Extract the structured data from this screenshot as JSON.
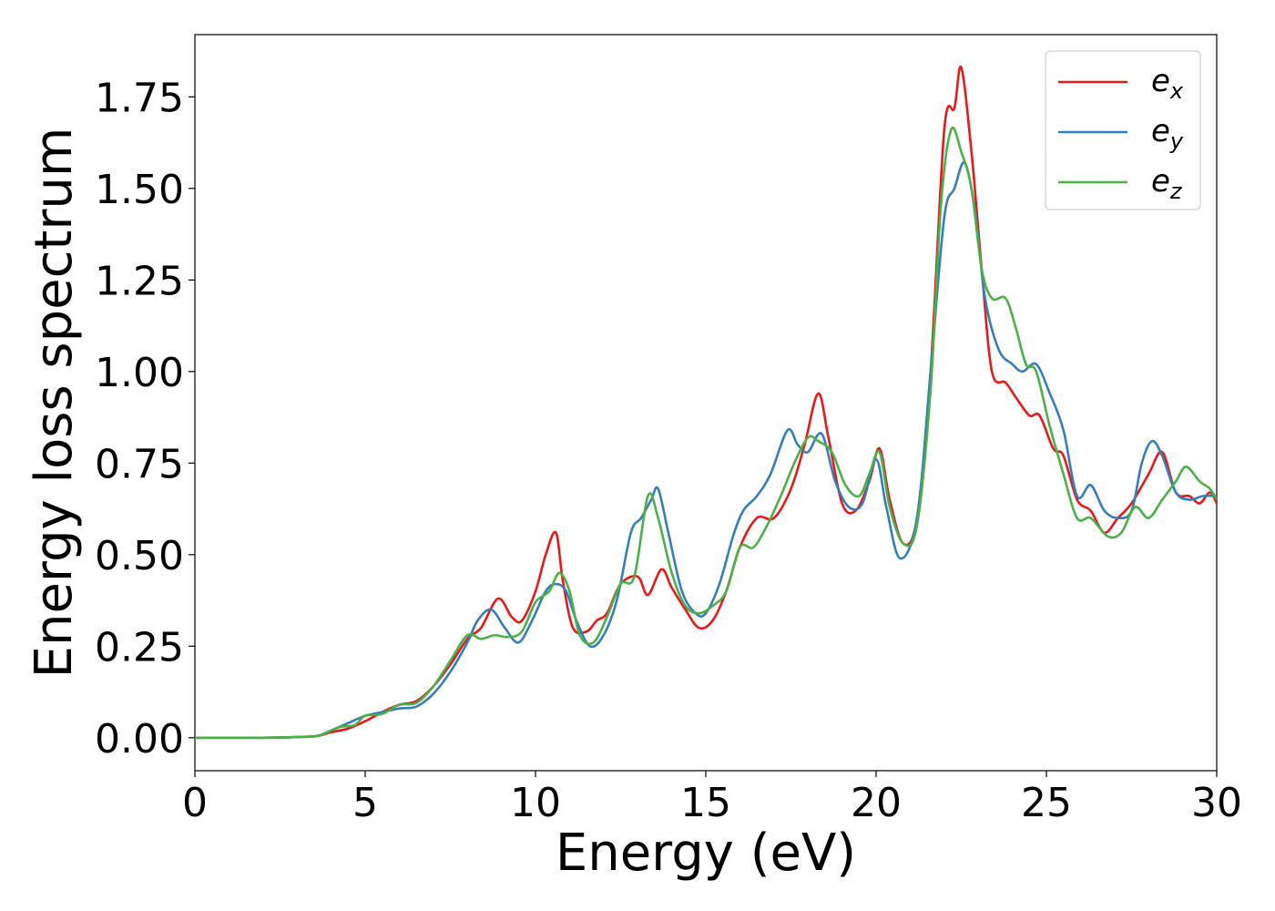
{
  "chart_data": {
    "type": "line",
    "title": "",
    "xlabel": "Energy (eV)",
    "ylabel": "Energy loss spectrum",
    "xlim": [
      0,
      30
    ],
    "ylim": [
      -0.09,
      1.92
    ],
    "xticks": [
      0,
      5,
      10,
      15,
      20,
      25,
      30
    ],
    "yticks": [
      0.0,
      0.25,
      0.5,
      0.75,
      1.0,
      1.25,
      1.5,
      1.75
    ],
    "grid": false,
    "legend_position": "top-right",
    "series": [
      {
        "name": "e_x",
        "legend_main": "e",
        "legend_sub": "x",
        "color": "#e41a1c",
        "points": [
          [
            0,
            0
          ],
          [
            1,
            0
          ],
          [
            2,
            0
          ],
          [
            3,
            0.002
          ],
          [
            3.6,
            0.005
          ],
          [
            4,
            0.015
          ],
          [
            4.5,
            0.025
          ],
          [
            5,
            0.045
          ],
          [
            5.5,
            0.07
          ],
          [
            6,
            0.09
          ],
          [
            6.5,
            0.1
          ],
          [
            7,
            0.14
          ],
          [
            7.5,
            0.2
          ],
          [
            8,
            0.27
          ],
          [
            8.4,
            0.3
          ],
          [
            8.9,
            0.38
          ],
          [
            9.3,
            0.33
          ],
          [
            9.6,
            0.32
          ],
          [
            10,
            0.4
          ],
          [
            10.3,
            0.5
          ],
          [
            10.6,
            0.56
          ],
          [
            10.8,
            0.43
          ],
          [
            11.1,
            0.3
          ],
          [
            11.5,
            0.29
          ],
          [
            11.8,
            0.32
          ],
          [
            12.1,
            0.34
          ],
          [
            12.5,
            0.42
          ],
          [
            13,
            0.44
          ],
          [
            13.3,
            0.39
          ],
          [
            13.7,
            0.46
          ],
          [
            14,
            0.41
          ],
          [
            14.4,
            0.35
          ],
          [
            14.8,
            0.3
          ],
          [
            15.2,
            0.32
          ],
          [
            15.6,
            0.4
          ],
          [
            16,
            0.52
          ],
          [
            16.5,
            0.6
          ],
          [
            17,
            0.6
          ],
          [
            17.5,
            0.68
          ],
          [
            17.9,
            0.8
          ],
          [
            18.3,
            0.94
          ],
          [
            18.6,
            0.82
          ],
          [
            19,
            0.64
          ],
          [
            19.4,
            0.62
          ],
          [
            19.8,
            0.7
          ],
          [
            20.1,
            0.79
          ],
          [
            20.4,
            0.65
          ],
          [
            20.8,
            0.53
          ],
          [
            21.2,
            0.6
          ],
          [
            21.6,
            1.0
          ],
          [
            22,
            1.66
          ],
          [
            22.3,
            1.72
          ],
          [
            22.5,
            1.83
          ],
          [
            22.8,
            1.6
          ],
          [
            23.1,
            1.28
          ],
          [
            23.4,
            1.0
          ],
          [
            23.8,
            0.97
          ],
          [
            24.1,
            0.93
          ],
          [
            24.5,
            0.88
          ],
          [
            24.8,
            0.88
          ],
          [
            25.2,
            0.79
          ],
          [
            25.5,
            0.77
          ],
          [
            25.9,
            0.65
          ],
          [
            26.3,
            0.62
          ],
          [
            26.7,
            0.56
          ],
          [
            27.1,
            0.6
          ],
          [
            27.5,
            0.64
          ],
          [
            28,
            0.72
          ],
          [
            28.4,
            0.78
          ],
          [
            28.8,
            0.67
          ],
          [
            29.2,
            0.66
          ],
          [
            29.5,
            0.64
          ],
          [
            29.8,
            0.67
          ],
          [
            30,
            0.64
          ]
        ]
      },
      {
        "name": "e_y",
        "legend_main": "e",
        "legend_sub": "y",
        "color": "#377eb8",
        "points": [
          [
            0,
            0
          ],
          [
            1,
            0
          ],
          [
            2,
            0
          ],
          [
            3,
            0.002
          ],
          [
            3.6,
            0.005
          ],
          [
            4,
            0.02
          ],
          [
            4.5,
            0.04
          ],
          [
            5,
            0.06
          ],
          [
            5.5,
            0.07
          ],
          [
            6,
            0.08
          ],
          [
            6.5,
            0.085
          ],
          [
            7,
            0.12
          ],
          [
            7.5,
            0.18
          ],
          [
            8,
            0.26
          ],
          [
            8.3,
            0.32
          ],
          [
            8.7,
            0.35
          ],
          [
            9.1,
            0.3
          ],
          [
            9.5,
            0.26
          ],
          [
            9.9,
            0.32
          ],
          [
            10.3,
            0.4
          ],
          [
            10.6,
            0.42
          ],
          [
            10.9,
            0.4
          ],
          [
            11.2,
            0.32
          ],
          [
            11.6,
            0.25
          ],
          [
            12,
            0.28
          ],
          [
            12.4,
            0.38
          ],
          [
            12.8,
            0.56
          ],
          [
            13.1,
            0.6
          ],
          [
            13.4,
            0.65
          ],
          [
            13.6,
            0.68
          ],
          [
            13.9,
            0.56
          ],
          [
            14.3,
            0.4
          ],
          [
            14.7,
            0.34
          ],
          [
            15,
            0.34
          ],
          [
            15.4,
            0.42
          ],
          [
            15.8,
            0.55
          ],
          [
            16.1,
            0.62
          ],
          [
            16.5,
            0.66
          ],
          [
            16.9,
            0.72
          ],
          [
            17.4,
            0.84
          ],
          [
            17.7,
            0.8
          ],
          [
            18,
            0.78
          ],
          [
            18.4,
            0.83
          ],
          [
            18.8,
            0.7
          ],
          [
            19.2,
            0.63
          ],
          [
            19.6,
            0.64
          ],
          [
            20,
            0.76
          ],
          [
            20.3,
            0.63
          ],
          [
            20.7,
            0.49
          ],
          [
            21.2,
            0.6
          ],
          [
            21.6,
            1.0
          ],
          [
            22,
            1.42
          ],
          [
            22.3,
            1.5
          ],
          [
            22.6,
            1.57
          ],
          [
            22.9,
            1.44
          ],
          [
            23.2,
            1.2
          ],
          [
            23.6,
            1.06
          ],
          [
            24,
            1.02
          ],
          [
            24.3,
            1.0
          ],
          [
            24.7,
            1.02
          ],
          [
            25.1,
            0.94
          ],
          [
            25.5,
            0.84
          ],
          [
            25.9,
            0.66
          ],
          [
            26.3,
            0.69
          ],
          [
            26.7,
            0.62
          ],
          [
            27.1,
            0.6
          ],
          [
            27.5,
            0.62
          ],
          [
            27.8,
            0.75
          ],
          [
            28.1,
            0.81
          ],
          [
            28.4,
            0.77
          ],
          [
            28.8,
            0.67
          ],
          [
            29.2,
            0.65
          ],
          [
            29.6,
            0.66
          ],
          [
            30,
            0.66
          ]
        ]
      },
      {
        "name": "e_z",
        "legend_main": "e",
        "legend_sub": "z",
        "color": "#4daf4a",
        "points": [
          [
            0,
            0
          ],
          [
            1,
            0
          ],
          [
            2,
            0
          ],
          [
            3,
            0.002
          ],
          [
            3.6,
            0.005
          ],
          [
            4,
            0.02
          ],
          [
            4.3,
            0.03
          ],
          [
            4.7,
            0.035
          ],
          [
            5,
            0.06
          ],
          [
            5.5,
            0.065
          ],
          [
            6,
            0.09
          ],
          [
            6.5,
            0.095
          ],
          [
            7,
            0.14
          ],
          [
            7.5,
            0.21
          ],
          [
            8,
            0.28
          ],
          [
            8.4,
            0.27
          ],
          [
            8.8,
            0.28
          ],
          [
            9.2,
            0.275
          ],
          [
            9.6,
            0.29
          ],
          [
            10,
            0.37
          ],
          [
            10.4,
            0.4
          ],
          [
            10.7,
            0.45
          ],
          [
            11,
            0.4
          ],
          [
            11.3,
            0.28
          ],
          [
            11.7,
            0.26
          ],
          [
            12.1,
            0.33
          ],
          [
            12.5,
            0.42
          ],
          [
            12.9,
            0.44
          ],
          [
            13.3,
            0.66
          ],
          [
            13.6,
            0.6
          ],
          [
            14,
            0.45
          ],
          [
            14.4,
            0.36
          ],
          [
            14.8,
            0.34
          ],
          [
            15.2,
            0.36
          ],
          [
            15.6,
            0.4
          ],
          [
            16,
            0.52
          ],
          [
            16.4,
            0.52
          ],
          [
            16.8,
            0.58
          ],
          [
            17.2,
            0.66
          ],
          [
            17.6,
            0.75
          ],
          [
            18,
            0.82
          ],
          [
            18.3,
            0.81
          ],
          [
            18.7,
            0.78
          ],
          [
            19.1,
            0.69
          ],
          [
            19.5,
            0.66
          ],
          [
            19.8,
            0.72
          ],
          [
            20.1,
            0.78
          ],
          [
            20.4,
            0.63
          ],
          [
            20.8,
            0.53
          ],
          [
            21.2,
            0.58
          ],
          [
            21.6,
            0.95
          ],
          [
            21.9,
            1.45
          ],
          [
            22.2,
            1.66
          ],
          [
            22.5,
            1.6
          ],
          [
            22.8,
            1.5
          ],
          [
            23.1,
            1.28
          ],
          [
            23.4,
            1.2
          ],
          [
            23.8,
            1.2
          ],
          [
            24.1,
            1.12
          ],
          [
            24.4,
            1.02
          ],
          [
            24.7,
            1.0
          ],
          [
            25.1,
            0.85
          ],
          [
            25.5,
            0.72
          ],
          [
            25.9,
            0.6
          ],
          [
            26.3,
            0.6
          ],
          [
            26.8,
            0.55
          ],
          [
            27.2,
            0.56
          ],
          [
            27.6,
            0.63
          ],
          [
            28,
            0.6
          ],
          [
            28.4,
            0.65
          ],
          [
            28.8,
            0.7
          ],
          [
            29.1,
            0.74
          ],
          [
            29.5,
            0.7
          ],
          [
            29.8,
            0.68
          ],
          [
            30,
            0.65
          ]
        ]
      }
    ]
  }
}
